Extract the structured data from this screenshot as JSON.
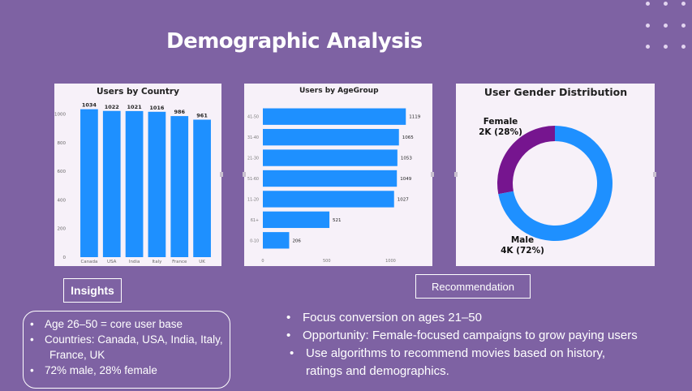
{
  "slide": {
    "title": "Demographic Analysis",
    "insights_label": "Insights",
    "recommendation_label": "Recommendation",
    "insights": [
      "Age 26–50 = core user base",
      "Countries: Canada, USA, India, Italy,",
      "France, UK",
      "72% male, 28% female"
    ],
    "recommendations": [
      "Focus conversion on ages 21–50",
      "Opportunity: Female-focused campaigns to grow paying users",
      "Use algorithms to recommend movies based on history,",
      "ratings and demographics."
    ]
  },
  "colors": {
    "background": "#7e62a3",
    "bar": "#1e90ff",
    "female": "#76158f",
    "male": "#1e90ff"
  },
  "chart_data": [
    {
      "type": "bar",
      "title": "Users by Country",
      "categories": [
        "Canada",
        "USA",
        "India",
        "Italy",
        "France",
        "UK"
      ],
      "values": [
        1034,
        1022,
        1021,
        1016,
        986,
        961
      ],
      "ylim": [
        0,
        1100
      ],
      "yticks": [
        0,
        200,
        400,
        600,
        800,
        1000
      ]
    },
    {
      "type": "bar",
      "orientation": "horizontal",
      "title": "Users by AgeGroup",
      "categories": [
        "41-50",
        "31-40",
        "21-30",
        "51-60",
        "11-20",
        "61+",
        "0-10"
      ],
      "values": [
        1119,
        1065,
        1053,
        1049,
        1027,
        521,
        206
      ],
      "xlim": [
        0,
        1200
      ],
      "xticks": [
        0,
        500,
        1000
      ]
    },
    {
      "type": "pie",
      "title": "User Gender Distribution",
      "labels": [
        "Female",
        "Male"
      ],
      "value_labels": [
        "2K (28%)",
        "4K (72%)"
      ],
      "values": [
        28,
        72
      ]
    }
  ]
}
